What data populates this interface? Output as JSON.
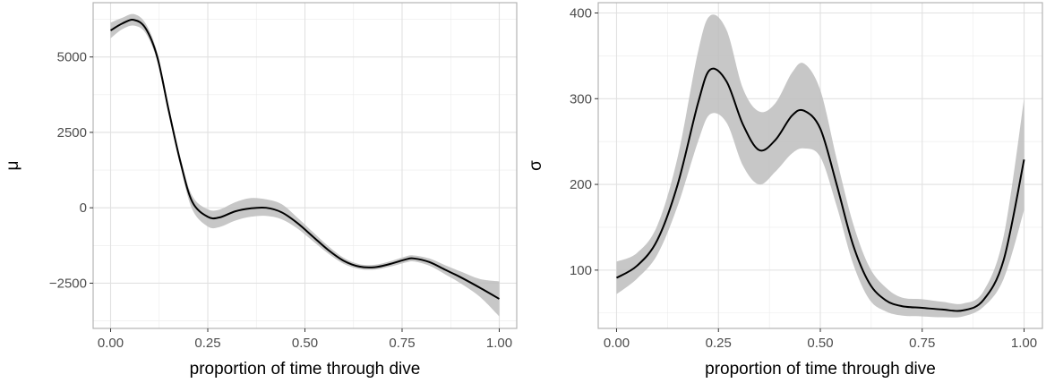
{
  "chart_data": [
    {
      "type": "line",
      "xlabel": "proportion of time through dive",
      "ylabel": "μ",
      "xlim": [
        -0.045,
        1.045
      ],
      "ylim": [
        -4000,
        6800
      ],
      "x_ticks": [
        0.0,
        0.25,
        0.5,
        0.75,
        1.0
      ],
      "x_tick_labels": [
        "0.00",
        "0.25",
        "0.50",
        "0.75",
        "1.00"
      ],
      "y_ticks": [
        -2500,
        0,
        2500,
        5000
      ],
      "y_tick_labels": [
        "−2500",
        "0",
        "2500",
        "5000"
      ],
      "grid": true,
      "x": [
        0.0,
        0.03,
        0.06,
        0.09,
        0.12,
        0.15,
        0.18,
        0.21,
        0.25,
        0.28,
        0.32,
        0.36,
        0.4,
        0.44,
        0.48,
        0.52,
        0.56,
        0.6,
        0.64,
        0.68,
        0.72,
        0.76,
        0.78,
        0.82,
        0.86,
        0.9,
        0.95,
        1.0
      ],
      "series": [
        {
          "values": [
            5880,
            6110,
            6230,
            5950,
            5000,
            3200,
            1500,
            200,
            -300,
            -320,
            -120,
            -20,
            0,
            -150,
            -500,
            -950,
            -1400,
            -1760,
            -1950,
            -1970,
            -1860,
            -1710,
            -1680,
            -1800,
            -2050,
            -2300,
            -2650,
            -3020
          ],
          "lower": [
            5620,
            5920,
            6040,
            5790,
            4850,
            3050,
            1350,
            -50,
            -620,
            -640,
            -430,
            -300,
            -270,
            -380,
            -680,
            -1100,
            -1520,
            -1860,
            -2030,
            -2050,
            -1950,
            -1810,
            -1780,
            -1920,
            -2200,
            -2500,
            -2950,
            -3600
          ],
          "upper": [
            6140,
            6300,
            6420,
            6110,
            5150,
            3350,
            1650,
            400,
            -50,
            -60,
            180,
            320,
            280,
            120,
            -320,
            -800,
            -1270,
            -1660,
            -1870,
            -1890,
            -1770,
            -1610,
            -1580,
            -1680,
            -1900,
            -2110,
            -2360,
            -2440
          ]
        }
      ],
      "colors": {
        "line": "#000000",
        "ribbon": "#bdbdbd",
        "grid": "#ebebeb",
        "border": "#b3b3b3"
      }
    },
    {
      "type": "line",
      "xlabel": "proportion of time through dive",
      "ylabel": "σ",
      "xlim": [
        -0.045,
        1.045
      ],
      "ylim": [
        32,
        412
      ],
      "x_ticks": [
        0.0,
        0.25,
        0.5,
        0.75,
        1.0
      ],
      "x_tick_labels": [
        "0.00",
        "0.25",
        "0.50",
        "0.75",
        "1.00"
      ],
      "y_ticks": [
        100,
        200,
        300,
        400
      ],
      "y_tick_labels": [
        "100",
        "200",
        "300",
        "400"
      ],
      "grid": true,
      "x": [
        0.0,
        0.05,
        0.1,
        0.15,
        0.2,
        0.23,
        0.27,
        0.31,
        0.35,
        0.39,
        0.43,
        0.46,
        0.5,
        0.54,
        0.58,
        0.62,
        0.66,
        0.7,
        0.75,
        0.8,
        0.85,
        0.9,
        0.95,
        1.0
      ],
      "series": [
        {
          "values": [
            91,
            105,
            135,
            200,
            295,
            334,
            320,
            270,
            240,
            252,
            280,
            286,
            265,
            200,
            130,
            85,
            65,
            58,
            56,
            54,
            53,
            65,
            112,
            229
          ],
          "lower": [
            72,
            90,
            118,
            175,
            250,
            282,
            272,
            222,
            200,
            215,
            236,
            242,
            232,
            175,
            108,
            66,
            52,
            47,
            46,
            45,
            46,
            57,
            90,
            170
          ],
          "upper": [
            110,
            120,
            152,
            232,
            355,
            397,
            380,
            312,
            285,
            295,
            330,
            341,
            310,
            230,
            155,
            104,
            80,
            68,
            66,
            63,
            61,
            75,
            140,
            300
          ]
        }
      ],
      "colors": {
        "line": "#000000",
        "ribbon": "#bdbdbd",
        "grid": "#ebebeb",
        "border": "#b3b3b3"
      }
    }
  ]
}
